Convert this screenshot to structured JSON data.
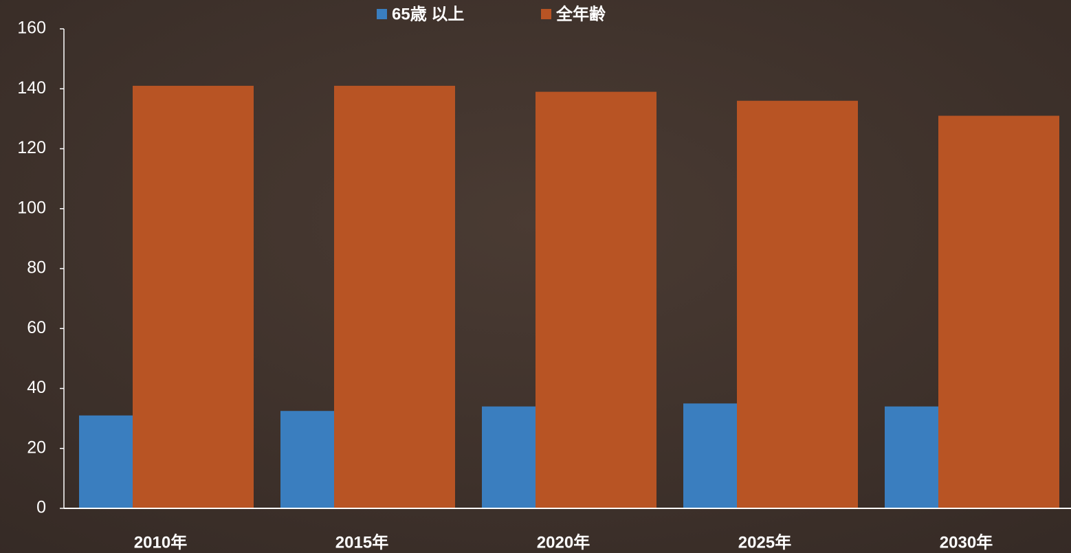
{
  "chart_data": {
    "type": "bar",
    "categories": [
      "2010年",
      "2015年",
      "2020年",
      "2025年",
      "2030年"
    ],
    "series": [
      {
        "name": "65歳 以上",
        "color": "#3a7ebf",
        "values": [
          31,
          32.5,
          34,
          35,
          34
        ]
      },
      {
        "name": "全年齢",
        "color": "#b85424",
        "values": [
          141,
          141,
          139,
          136,
          131
        ]
      }
    ],
    "ylim": [
      0,
      160
    ],
    "yticks": [
      0,
      20,
      40,
      60,
      80,
      100,
      120,
      140,
      160
    ]
  }
}
